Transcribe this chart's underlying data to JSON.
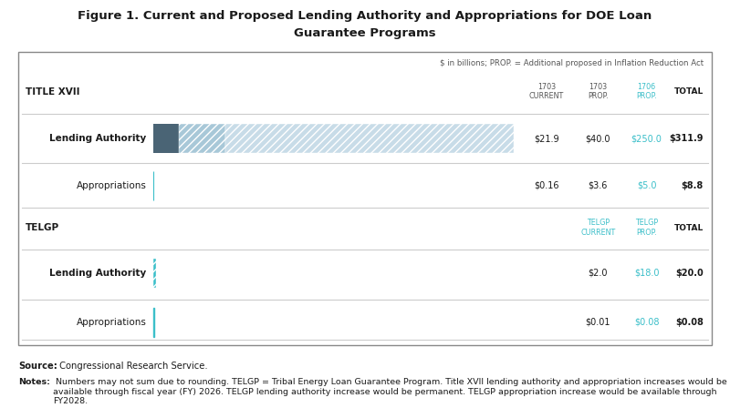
{
  "title_line1": "Figure 1. Current and Proposed Lending Authority and Appropriations for DOE Loan",
  "title_line2": "Guarantee Programs",
  "subtitle": "$ in billions; PROP. = Additional proposed in Inflation Reduction Act",
  "bg_color": "#ffffff",
  "title_xvii_label": "TITLE XVII",
  "telgp_label": "TELGP",
  "dark_blue": "#4a6475",
  "light_blue": "#a8c8d8",
  "teal": "#3bbfc9",
  "text_dark": "#1a1a1a",
  "text_gray": "#555555",
  "line_color": "#cccccc",
  "bar_scale": 311.9,
  "source_bold": "Source:",
  "source_rest": " Congressional Research Service.",
  "notes_bold": "Notes:",
  "notes_rest": " Numbers may not sum due to rounding. TELGP = Tribal Energy Loan Guarantee Program. Title XVII lending authority and appropriation increases would be available through fiscal year (FY) 2026. TELGP lending authority increase would be permanent. TELGP appropriation increase would be available through FY2028."
}
